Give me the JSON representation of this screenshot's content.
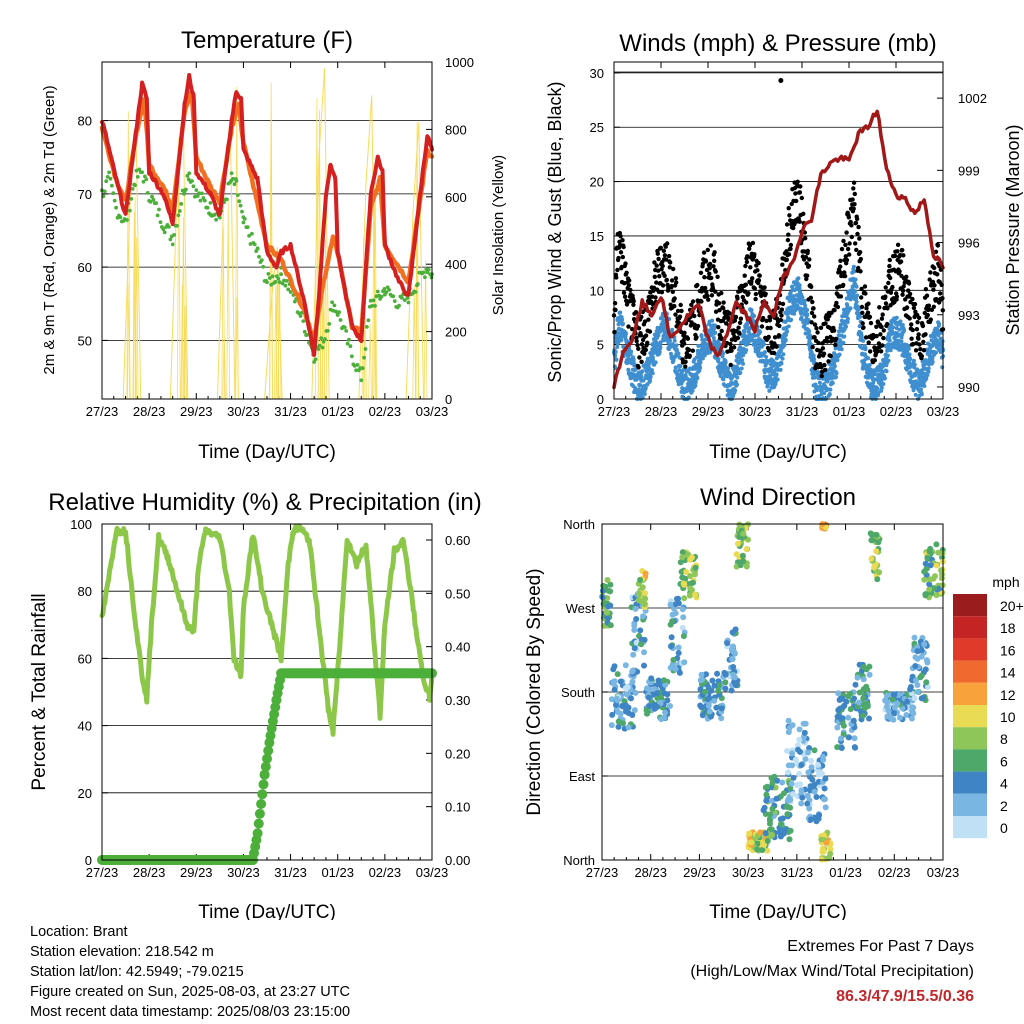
{
  "colors": {
    "temp_9m": "#f07020",
    "temp_2m": "#d42020",
    "dewpoint": "#4caf3a",
    "solar": "#f7dc5c",
    "wind_gust": "#000000",
    "wind_sustained": "#3f8fd0",
    "pressure": "#a01818",
    "rh": "#8dc74a",
    "precip": "#4caf3a"
  },
  "chart_data": [
    {
      "id": "temperature",
      "type": "line",
      "title": "Temperature (F)",
      "xlabel": "Time (Day/UTC)",
      "ylabel": "2m & 9m T (Red, Orange) & 2m Td (Green)",
      "y2label": "Solar Insolation (Yellow)",
      "x_ticks": [
        "27/23",
        "28/23",
        "29/23",
        "30/23",
        "31/23",
        "01/23",
        "02/23",
        "03/23"
      ],
      "ylim": [
        42,
        88
      ],
      "y_ticks": [
        50,
        60,
        70,
        80
      ],
      "y2lim": [
        0,
        1000
      ],
      "y2_ticks": [
        0,
        200,
        400,
        600,
        800,
        1000
      ],
      "series": [
        {
          "key": "temp_2m",
          "x": [
            0,
            0.08,
            0.3,
            0.5,
            0.75,
            0.85,
            0.95,
            1.0,
            1.3,
            1.5,
            1.75,
            1.85,
            1.95,
            2.0,
            2.3,
            2.5,
            2.75,
            2.85,
            2.95,
            3.0,
            3.3,
            3.5,
            3.7,
            3.8,
            4.0,
            4.3,
            4.5,
            4.6,
            4.75,
            4.85,
            4.95,
            5.0,
            5.3,
            5.5,
            5.7,
            5.85,
            5.95,
            6.0,
            6.3,
            6.5,
            6.75,
            6.9,
            7.0
          ],
          "values": [
            80,
            78,
            72,
            67,
            80,
            85,
            83,
            73,
            70,
            66,
            82,
            86,
            83,
            73,
            70,
            67,
            80,
            84,
            83,
            76,
            72,
            62,
            60,
            62,
            63,
            55,
            48,
            56,
            70,
            74,
            72,
            62,
            52,
            50,
            70,
            75,
            73,
            63,
            58,
            56,
            70,
            78,
            76
          ]
        },
        {
          "key": "temp_9m",
          "x": [
            0,
            0.3,
            0.5,
            0.75,
            0.9,
            1.0,
            1.3,
            1.5,
            1.75,
            1.9,
            2.0,
            2.3,
            2.5,
            2.75,
            2.9,
            3.0,
            3.5,
            3.8,
            4.3,
            4.5,
            4.7,
            4.9,
            5.0,
            5.3,
            5.5,
            5.7,
            5.9,
            6.0,
            6.5,
            6.9,
            7.0
          ],
          "values": [
            79,
            72,
            69,
            79,
            83,
            74,
            71,
            68,
            81,
            84,
            75,
            71,
            69,
            79,
            82,
            77,
            63,
            61,
            54,
            50,
            58,
            64,
            62,
            52,
            51,
            68,
            72,
            63,
            58,
            76,
            75
          ]
        },
        {
          "key": "dewpoint",
          "x": [
            0,
            0.15,
            0.3,
            0.5,
            0.7,
            0.85,
            1.0,
            1.3,
            1.5,
            1.75,
            1.85,
            2.0,
            2.3,
            2.5,
            2.75,
            2.85,
            3.0,
            3.3,
            3.5,
            3.8,
            4.0,
            4.3,
            4.5,
            4.7,
            4.9,
            5.0,
            5.3,
            5.5,
            5.7,
            5.9,
            6.0,
            6.3,
            6.5,
            6.7,
            6.9,
            7.0
          ],
          "values": [
            70,
            72,
            68,
            66,
            72,
            73,
            70,
            66,
            64,
            71,
            73,
            70,
            68,
            67,
            72,
            71,
            66,
            62,
            58,
            59,
            57,
            52,
            48,
            50,
            55,
            54,
            48,
            45,
            55,
            56,
            57,
            55,
            56,
            58,
            60,
            59
          ]
        },
        {
          "key": "solar",
          "x": [
            0.05,
            0.45,
            0.6,
            0.72,
            0.82,
            1.05,
            1.45,
            1.6,
            1.72,
            1.82,
            2.05,
            2.45,
            2.6,
            2.72,
            2.82,
            3.05,
            3.45,
            3.6,
            3.72,
            3.82,
            4.05,
            4.45,
            4.6,
            4.72,
            4.82,
            5.05,
            5.45,
            5.6,
            5.72,
            5.82,
            6.05,
            6.45,
            6.6,
            6.72,
            6.82,
            7.0
          ],
          "values": [
            0,
            0,
            600,
            820,
            0,
            0,
            0,
            650,
            850,
            0,
            0,
            0,
            680,
            830,
            0,
            0,
            0,
            300,
            450,
            0,
            0,
            0,
            720,
            980,
            0,
            0,
            0,
            640,
            900,
            0,
            0,
            0,
            560,
            820,
            0,
            0
          ]
        }
      ]
    },
    {
      "id": "winds",
      "type": "line",
      "title": "Winds (mph) & Pressure (mb)",
      "xlabel": "Time (Day/UTC)",
      "ylabel": "Sonic/Prop Wind & Gust (Blue, Black)",
      "y2label": "Station Pressure (Maroon)",
      "x_ticks": [
        "27/23",
        "28/23",
        "29/23",
        "30/23",
        "31/23",
        "01/23",
        "02/23",
        "03/23"
      ],
      "ylim": [
        0,
        31
      ],
      "y_ticks": [
        0,
        5,
        10,
        15,
        20,
        25,
        30
      ],
      "y2lim": [
        989.5,
        1003.5
      ],
      "y2_ticks": [
        990,
        993,
        996,
        999,
        1002
      ],
      "series": [
        {
          "key": "wind_gust",
          "x": [
            0,
            0.1,
            0.3,
            0.5,
            0.7,
            0.9,
            1.1,
            1.3,
            1.5,
            1.7,
            1.9,
            2.1,
            2.3,
            2.5,
            2.7,
            2.9,
            3.1,
            3.3,
            3.5,
            3.7,
            3.9,
            4.1,
            4.3,
            4.5,
            4.7,
            4.9,
            5.1,
            5.3,
            5.5,
            5.7,
            5.9,
            6.1,
            6.3,
            6.5,
            6.7,
            6.9,
            7.0
          ],
          "values": [
            6,
            14,
            8,
            4,
            6,
            10,
            12,
            8,
            4,
            6,
            10,
            11,
            6,
            4,
            8,
            12,
            9,
            5,
            6,
            14,
            18,
            12,
            3,
            4,
            6,
            12,
            17,
            8,
            4,
            6,
            10,
            11,
            7,
            4,
            8,
            11,
            7
          ]
        },
        {
          "key": "wind_sustained",
          "x": [
            0,
            0.1,
            0.3,
            0.5,
            0.7,
            0.9,
            1.1,
            1.3,
            1.5,
            1.7,
            1.9,
            2.1,
            2.3,
            2.5,
            2.7,
            2.9,
            3.1,
            3.3,
            3.5,
            3.7,
            3.9,
            4.1,
            4.3,
            4.5,
            4.7,
            4.9,
            5.1,
            5.3,
            5.5,
            5.7,
            5.9,
            6.1,
            6.3,
            6.5,
            6.7,
            6.9,
            7.0
          ],
          "values": [
            3,
            7,
            4,
            1,
            2,
            5,
            7,
            4,
            1,
            2,
            5,
            6,
            3,
            1,
            4,
            7,
            5,
            2,
            3,
            8,
            10,
            7,
            1,
            1,
            3,
            7,
            11,
            4,
            1,
            2,
            6,
            6,
            3,
            1,
            4,
            6,
            4
          ]
        },
        {
          "key": "pressure",
          "x": [
            0,
            0.2,
            0.4,
            0.6,
            0.8,
            1.0,
            1.2,
            1.4,
            1.6,
            1.8,
            2.0,
            2.2,
            2.4,
            2.6,
            2.8,
            3.0,
            3.2,
            3.4,
            3.6,
            3.8,
            4.0,
            4.2,
            4.4,
            4.6,
            4.8,
            5.0,
            5.2,
            5.4,
            5.6,
            5.8,
            6.0,
            6.2,
            6.4,
            6.6,
            6.8,
            7.0
          ],
          "values": [
            990,
            991.5,
            992,
            993.5,
            993,
            993.8,
            992,
            992.5,
            993,
            993.4,
            992,
            991.2,
            992.2,
            993.5,
            993,
            992.4,
            993.5,
            993,
            994.5,
            995.2,
            996.5,
            997,
            998.8,
            999.3,
            999.5,
            999.4,
            1000.5,
            1000.8,
            1001.5,
            999,
            998,
            997.8,
            997.2,
            997.8,
            995.5,
            995
          ]
        }
      ],
      "annotations": [
        {
          "x": 3.55,
          "y": 29.3
        }
      ]
    },
    {
      "id": "humidity",
      "type": "line",
      "title": "Relative Humidity (%) & Precipitation (in)",
      "xlabel": "Time (Day/UTC)",
      "ylabel": "Percent & Total Rainfall",
      "x_ticks": [
        "27/23",
        "28/23",
        "29/23",
        "30/23",
        "31/23",
        "01/23",
        "02/23",
        "03/23"
      ],
      "ylim": [
        0,
        100
      ],
      "y_ticks": [
        0,
        20,
        40,
        60,
        80,
        100
      ],
      "y2lim": [
        0,
        0.63
      ],
      "y2_ticks": [
        "0.00",
        "0.10",
        "0.20",
        "0.30",
        "0.40",
        "0.50",
        "0.60"
      ],
      "series": [
        {
          "key": "rh",
          "x": [
            0,
            0.1,
            0.3,
            0.5,
            0.7,
            0.85,
            0.95,
            1.05,
            1.2,
            1.4,
            1.6,
            1.8,
            1.95,
            2.05,
            2.2,
            2.5,
            2.7,
            2.8,
            2.95,
            3.0,
            3.2,
            3.4,
            3.6,
            3.8,
            3.95,
            4.05,
            4.2,
            4.4,
            4.6,
            4.8,
            4.9,
            5.05,
            5.2,
            5.4,
            5.6,
            5.8,
            5.9,
            6.0,
            6.2,
            6.4,
            6.6,
            6.8,
            6.95,
            7.0
          ],
          "values": [
            72,
            80,
            98,
            98,
            72,
            55,
            48,
            70,
            96,
            90,
            80,
            70,
            68,
            88,
            98,
            96,
            80,
            60,
            55,
            75,
            97,
            80,
            70,
            60,
            88,
            98,
            99,
            95,
            70,
            45,
            38,
            65,
            96,
            88,
            94,
            60,
            43,
            70,
            92,
            95,
            75,
            55,
            48,
            55
          ]
        },
        {
          "key": "precip",
          "x": [
            0,
            3.2,
            3.3,
            3.45,
            3.55,
            3.7,
            3.8,
            7.0
          ],
          "values": [
            0,
            0,
            0.05,
            0.16,
            0.22,
            0.3,
            0.35,
            0.35
          ]
        }
      ]
    },
    {
      "id": "wind_direction",
      "type": "scatter",
      "title": "Wind Direction",
      "xlabel": "Time (Day/UTC)",
      "ylabel": "Direction (Colored By Speed)",
      "x_ticks": [
        "27/23",
        "28/23",
        "29/23",
        "30/23",
        "31/23",
        "01/23",
        "02/23",
        "03/23"
      ],
      "y_ticks": [
        "North",
        "East",
        "South",
        "West",
        "North"
      ],
      "ylim": [
        0,
        360
      ],
      "legend": {
        "title": "mph",
        "position": "right",
        "labels": [
          "20+",
          "18",
          "16",
          "14",
          "12",
          "10",
          "8",
          "6",
          "4",
          "2",
          "0"
        ],
        "colors": [
          "#9b1c1c",
          "#c42424",
          "#e03a2a",
          "#f06a30",
          "#f7a23a",
          "#eadb55",
          "#8fc65a",
          "#4ea86a",
          "#3f84c4",
          "#7ab6e2",
          "#bfe0f5"
        ]
      },
      "clusters": [
        {
          "x": [
            0.0,
            0.2
          ],
          "dir": [
            250,
            300
          ],
          "speed": 6
        },
        {
          "x": [
            0.2,
            0.7
          ],
          "dir": [
            140,
            210
          ],
          "speed": 3
        },
        {
          "x": [
            0.6,
            0.9
          ],
          "dir": [
            190,
            290
          ],
          "speed": 3
        },
        {
          "x": [
            0.75,
            0.9
          ],
          "dir": [
            270,
            310
          ],
          "speed": 9
        },
        {
          "x": [
            0.9,
            1.4
          ],
          "dir": [
            150,
            195
          ],
          "speed": 4
        },
        {
          "x": [
            1.4,
            1.7
          ],
          "dir": [
            200,
            280
          ],
          "speed": 3
        },
        {
          "x": [
            1.6,
            1.95
          ],
          "dir": [
            280,
            330
          ],
          "speed": 8
        },
        {
          "x": [
            2.0,
            2.5
          ],
          "dir": [
            150,
            200
          ],
          "speed": 4
        },
        {
          "x": [
            2.5,
            2.8
          ],
          "dir": [
            180,
            250
          ],
          "speed": 3
        },
        {
          "x": [
            2.75,
            3.0
          ],
          "dir": [
            310,
            360
          ],
          "speed": 8
        },
        {
          "x": [
            3.0,
            3.4
          ],
          "dir": [
            10,
            30
          ],
          "speed": 9
        },
        {
          "x": [
            3.3,
            3.9
          ],
          "dir": [
            20,
            90
          ],
          "speed": 5
        },
        {
          "x": [
            3.8,
            4.2
          ],
          "dir": [
            60,
            150
          ],
          "speed": 2
        },
        {
          "x": [
            4.2,
            4.6
          ],
          "dir": [
            40,
            120
          ],
          "speed": 3
        },
        {
          "x": [
            4.5,
            4.7
          ],
          "dir": [
            0,
            30
          ],
          "speed": 10
        },
        {
          "x": [
            4.5,
            4.6
          ],
          "dir": [
            355,
            360
          ],
          "speed": 12
        },
        {
          "x": [
            4.8,
            5.2
          ],
          "dir": [
            120,
            180
          ],
          "speed": 4
        },
        {
          "x": [
            5.2,
            5.5
          ],
          "dir": [
            150,
            210
          ],
          "speed": 4
        },
        {
          "x": [
            5.5,
            5.7
          ],
          "dir": [
            300,
            350
          ],
          "speed": 8
        },
        {
          "x": [
            5.8,
            6.4
          ],
          "dir": [
            150,
            180
          ],
          "speed": 3
        },
        {
          "x": [
            6.3,
            6.7
          ],
          "dir": [
            170,
            240
          ],
          "speed": 3
        },
        {
          "x": [
            6.6,
            7.0
          ],
          "dir": [
            280,
            340
          ],
          "speed": 7
        }
      ]
    }
  ],
  "footer": {
    "location": "Location: Brant",
    "elevation": "Station elevation: 218.542 m",
    "latlon": "Station lat/lon: 42.5949; -79.0215",
    "created": "Figure created on Sun, 2025-08-03, at 23:27 UTC",
    "recent": "Most recent data timestamp: 2025/08/03 23:15:00",
    "extremes_title": "Extremes For Past 7 Days",
    "extremes_subtitle": "(High/Low/Max Wind/Total Precipitation)",
    "extremes_values": "86.3/47.9/15.5/0.36"
  }
}
